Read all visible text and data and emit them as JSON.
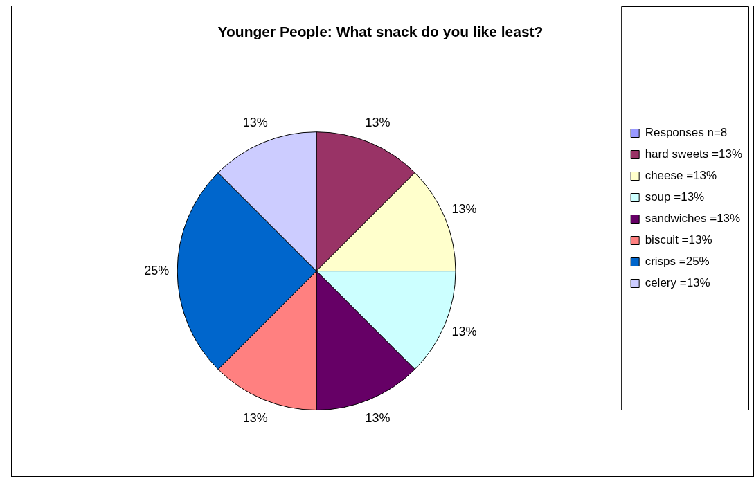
{
  "chart_data": {
    "type": "pie",
    "title": "Younger People: What snack do you like least?",
    "categories": [
      "Responses n=8",
      "hard sweets =13%",
      "cheese =13%",
      "soup =13%",
      "sandwiches =13%",
      "biscuit =13%",
      "crisps =25%",
      "celery =13%"
    ],
    "values": [
      0,
      12.5,
      12.5,
      12.5,
      12.5,
      12.5,
      25,
      12.5
    ],
    "colors": [
      "#9999ff",
      "#993366",
      "#ffffcc",
      "#ccffff",
      "#660066",
      "#ff8080",
      "#0066cc",
      "#ccccff"
    ],
    "value_labels": [
      null,
      "13%",
      "13%",
      "13%",
      "13%",
      "13%",
      "25%",
      "13%"
    ],
    "legend": "right"
  }
}
